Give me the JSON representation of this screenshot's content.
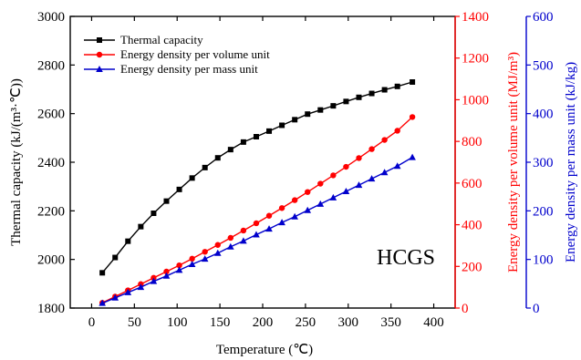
{
  "chart_data": {
    "type": "line",
    "xlabel": "Temperature (℃)",
    "x_ticks": [
      "0",
      "50",
      "100",
      "150",
      "200",
      "250",
      "300",
      "350",
      "400"
    ],
    "xlim": [
      -25,
      425
    ],
    "y_axes": {
      "left": {
        "label": "Thermal capacity (kJ/(m³·℃))",
        "ylim": [
          1800,
          3000
        ],
        "ticks": [
          "1800",
          "2000",
          "2200",
          "2400",
          "2600",
          "2800",
          "3000"
        ],
        "color": "#000000"
      },
      "right1": {
        "label": "Energy density per volume unit (MJ/m³)",
        "ylim": [
          0,
          1400
        ],
        "ticks": [
          "0",
          "200",
          "400",
          "600",
          "800",
          "1000",
          "1200",
          "1400"
        ],
        "color": "#ff0000"
      },
      "right2": {
        "label": "Energy density per mass unit (kJ/kg)",
        "ylim": [
          0,
          600
        ],
        "ticks": [
          "0",
          "100",
          "200",
          "300",
          "400",
          "500",
          "600"
        ],
        "color": "#0000cc"
      }
    },
    "annotation": "HCGS",
    "legend_position": "top-left",
    "grid": false,
    "x": [
      12.5,
      27.5,
      42.5,
      57.5,
      72.5,
      87.5,
      102.5,
      117.5,
      132.5,
      147.5,
      162.5,
      177.5,
      192.5,
      207.5,
      222.5,
      237.5,
      252.5,
      267.5,
      282.5,
      297.5,
      312.5,
      327.5,
      342.5,
      357.5,
      375
    ],
    "series": [
      {
        "name": "Thermal capacity",
        "axis": "left",
        "color": "#000000",
        "marker": "square",
        "values": [
          1945,
          2008,
          2075,
          2135,
          2190,
          2240,
          2288,
          2335,
          2378,
          2418,
          2452,
          2483,
          2505,
          2528,
          2552,
          2575,
          2598,
          2615,
          2632,
          2650,
          2667,
          2683,
          2698,
          2712,
          2730
        ]
      },
      {
        "name": "Energy density per volume unit",
        "axis": "right1",
        "color": "#ff0000",
        "marker": "circle",
        "values": [
          25,
          55,
          85,
          115,
          145,
          175,
          205,
          237,
          270,
          303,
          337,
          372,
          407,
          443,
          480,
          518,
          557,
          597,
          637,
          678,
          720,
          763,
          807,
          851,
          917
        ]
      },
      {
        "name": "Energy density per mass unit",
        "axis": "right2",
        "color": "#0000cc",
        "marker": "triangle",
        "values": [
          10,
          21,
          32,
          43,
          55,
          66,
          78,
          90,
          101,
          113,
          126,
          138,
          151,
          163,
          176,
          188,
          201,
          214,
          227,
          240,
          253,
          266,
          279,
          292,
          310
        ]
      }
    ]
  }
}
